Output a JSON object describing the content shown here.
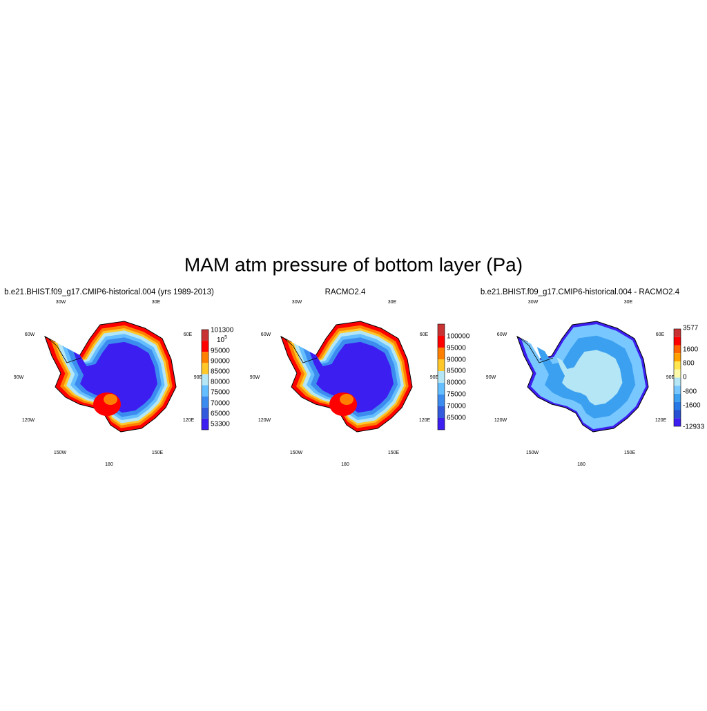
{
  "title": "MAM atm pressure of bottom layer (Pa)",
  "lon_labels": [
    "30W",
    "30E",
    "60W",
    "60E",
    "90W",
    "90E",
    "120W",
    "120E",
    "150W",
    "150E",
    "180"
  ],
  "panels": [
    {
      "title": "b.e21.BHIST.f09_g17.CMIP6-historical.004 (yrs 1989-2013)",
      "colorbar": {
        "colors": [
          "#c83232",
          "#ff0000",
          "#ff8000",
          "#ffc828",
          "#b4e6f5",
          "#64beff",
          "#3c8cf0",
          "#325adc",
          "#3c1ef0"
        ],
        "labels": [
          "101300",
          {
            "base": "10",
            "exponent": "5"
          },
          "95000",
          "90000",
          "85000",
          "80000",
          "75000",
          "70000",
          "65000",
          "53300"
        ]
      }
    },
    {
      "title": "RACMO2.4",
      "colorbar": {
        "colors": [
          "#c83232",
          "#ff0000",
          "#ff8000",
          "#ffc828",
          "#b4e6f5",
          "#64beff",
          "#3c8cf0",
          "#325adc",
          "#3c1ef0"
        ],
        "labels": [
          "100000",
          "95000",
          "90000",
          "85000",
          "80000",
          "75000",
          "70000",
          "65000"
        ]
      }
    },
    {
      "title": "b.e21.BHIST.f09_g17.CMIP6-historical.004 - RACMO2.4",
      "colorbar": {
        "colors": [
          "#c83232",
          "#ff0000",
          "#ff6400",
          "#ffa000",
          "#ffe650",
          "#fffaaa",
          "#b4e6f5",
          "#78c8ff",
          "#3ca0f0",
          "#2878e6",
          "#2850d2",
          "#3c1ef0"
        ],
        "labels": [
          "3577",
          "1600",
          "800",
          "0",
          "-800",
          "-1600",
          "-12933"
        ]
      }
    }
  ]
}
